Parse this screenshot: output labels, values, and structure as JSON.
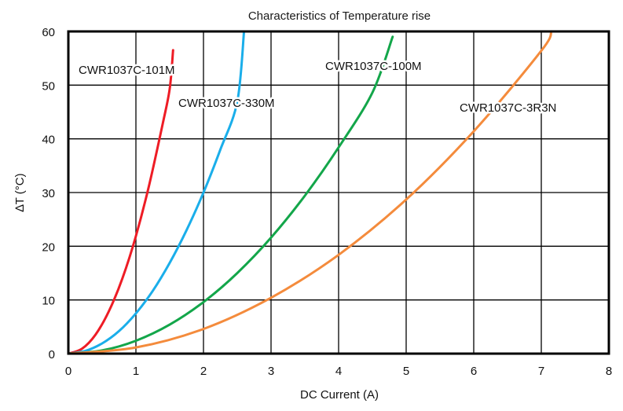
{
  "chart_data": {
    "type": "line",
    "title": "Characteristics of Temperature rise",
    "xlabel": "DC Current (A)",
    "ylabel": "∆T (°C)",
    "xlim": [
      0,
      8
    ],
    "ylim": [
      0,
      60
    ],
    "x_ticks": [
      "0",
      "1",
      "2",
      "3",
      "4",
      "5",
      "6",
      "7",
      "8"
    ],
    "y_ticks": [
      "0",
      "10",
      "20",
      "30",
      "40",
      "50",
      "60"
    ],
    "grid": true,
    "legend": "none (series labeled inline)",
    "series": [
      {
        "name": "CWR1037C-101M",
        "color": "#ee1c25",
        "x": [
          0,
          0.2,
          0.4,
          0.6,
          0.8,
          1.0,
          1.2,
          1.4,
          1.5,
          1.55
        ],
        "y": [
          0,
          0.9,
          3.5,
          7.9,
          14.0,
          21.9,
          31.6,
          43.0,
          49.3,
          56.5
        ]
      },
      {
        "name": "CWR1037C-330M",
        "color": "#1aaeea",
        "x": [
          0,
          0.25,
          0.5,
          0.75,
          1.0,
          1.25,
          1.5,
          1.75,
          2.0,
          2.25,
          2.5,
          2.6
        ],
        "y": [
          0,
          0.5,
          1.9,
          4.2,
          7.5,
          11.7,
          16.9,
          23.0,
          30.0,
          38.0,
          46.9,
          60.0
        ]
      },
      {
        "name": "CWR1037C-100M",
        "color": "#13a64a",
        "x": [
          0,
          0.5,
          1.0,
          1.5,
          2.0,
          2.5,
          3.0,
          3.5,
          4.0,
          4.5,
          4.8
        ],
        "y": [
          0,
          0.6,
          2.4,
          5.4,
          9.6,
          15.0,
          21.6,
          29.4,
          38.4,
          48.6,
          59.0
        ]
      },
      {
        "name": "CWR1037C-3R3N",
        "color": "#f48b3c",
        "x": [
          0,
          1,
          2,
          3,
          4,
          5,
          6,
          7,
          7.15
        ],
        "y": [
          0,
          1.15,
          4.6,
          10.4,
          18.4,
          28.7,
          41.4,
          56.4,
          60.0
        ]
      }
    ]
  }
}
